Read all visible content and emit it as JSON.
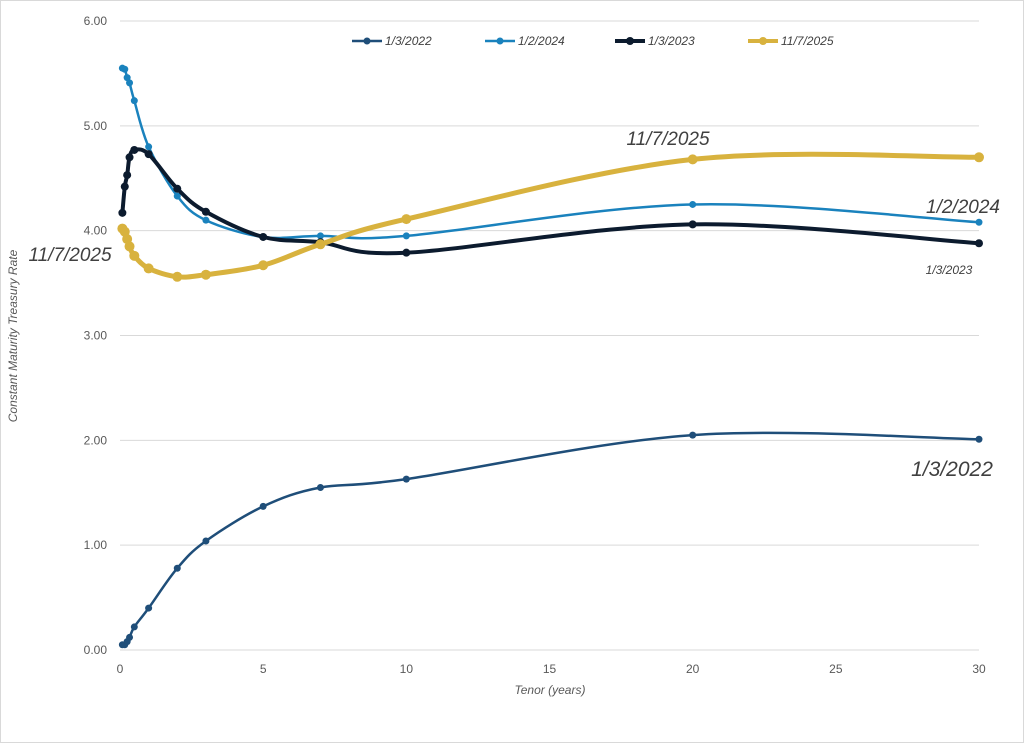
{
  "chart_data": {
    "type": "line",
    "title": "",
    "xlabel": "Tenor (years)",
    "ylabel": "Constant Maturity Treasury Rate",
    "xlim": [
      0,
      30
    ],
    "ylim": [
      0,
      6
    ],
    "x_ticks": [
      0,
      5,
      10,
      15,
      20,
      25,
      30
    ],
    "y_ticks": [
      "0.00",
      "1.00",
      "2.00",
      "3.00",
      "4.00",
      "5.00",
      "6.00"
    ],
    "grid": "horizontal",
    "legend_position": "top-center",
    "x": [
      0.083,
      0.167,
      0.25,
      0.333,
      0.5,
      1,
      2,
      3,
      5,
      7,
      10,
      20,
      30
    ],
    "series": [
      {
        "name": "1/3/2022",
        "color": "#1f4e79",
        "width": 2.5,
        "marker": 3.5,
        "values": [
          0.05,
          0.05,
          0.08,
          0.12,
          0.22,
          0.4,
          0.78,
          1.04,
          1.37,
          1.55,
          1.63,
          2.05,
          2.01
        ]
      },
      {
        "name": "1/2/2024",
        "color": "#1a82bd",
        "width": 2.5,
        "marker": 3.5,
        "values": [
          5.55,
          5.54,
          5.46,
          5.41,
          5.24,
          4.8,
          4.33,
          4.1,
          3.94,
          3.95,
          3.95,
          4.25,
          4.08
        ]
      },
      {
        "name": "1/3/2023",
        "color": "#0c1b2e",
        "width": 4,
        "marker": 4,
        "values": [
          4.17,
          4.42,
          4.53,
          4.7,
          4.77,
          4.73,
          4.4,
          4.18,
          3.94,
          3.89,
          3.79,
          4.06,
          3.88
        ]
      },
      {
        "name": "11/7/2025",
        "color": "#d8b23e",
        "width": 5,
        "marker": 5,
        "values": [
          4.02,
          3.99,
          3.92,
          3.85,
          3.76,
          3.64,
          3.56,
          3.58,
          3.67,
          3.87,
          4.11,
          4.68,
          4.7
        ]
      }
    ],
    "annotations": [
      {
        "text": "11/7/2025",
        "series": "11/7/2025"
      },
      {
        "text": "1/2/2024",
        "series": "1/2/2024"
      },
      {
        "text": "1/3/2023",
        "series": "1/3/2023"
      },
      {
        "text": "1/3/2022",
        "series": "1/3/2022"
      },
      {
        "text": "11/7/2025",
        "series": "11/7/2025"
      }
    ]
  }
}
